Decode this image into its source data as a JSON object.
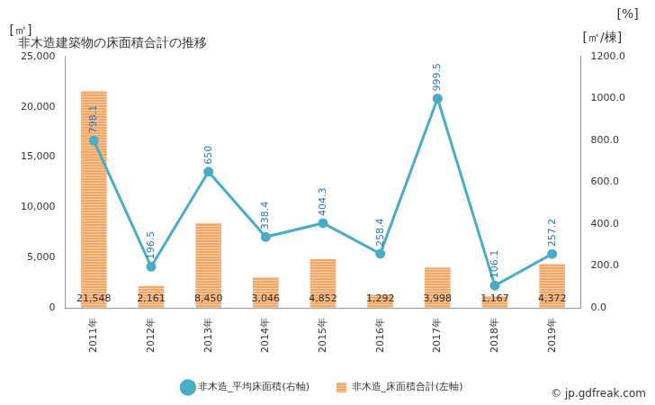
{
  "chart_data": {
    "type": "bar",
    "title": "非木造建築物の床面積合計の推移",
    "categories": [
      "2011年",
      "2012年",
      "2013年",
      "2014年",
      "2015年",
      "2016年",
      "2017年",
      "2018年",
      "2019年"
    ],
    "series": [
      {
        "name": "非木造_床面積合計(左軸)",
        "type": "bar",
        "color": "#f4a765",
        "values": [
          21548,
          2161,
          8450,
          3046,
          4852,
          1292,
          3998,
          1167,
          4372
        ],
        "value_labels": [
          "21,548",
          "2,161",
          "8,450",
          "3,046",
          "4,852",
          "1,292",
          "3,998",
          "1,167",
          "4,372"
        ]
      },
      {
        "name": "非木造_平均床面積(右軸)",
        "type": "line",
        "axis": "y2",
        "color": "#4bacc6",
        "marker": "circle",
        "values": [
          798.1,
          196.5,
          650,
          338.4,
          404.3,
          258.4,
          999.5,
          106.1,
          257.2
        ]
      }
    ],
    "y_label": "[㎡]",
    "y2_label": "[㎡/棟]",
    "ylim": [
      0,
      25000
    ],
    "yticks": [
      0,
      {
        "value": 5000,
        "label": "5,000"
      },
      {
        "value": 10000,
        "label": "10,000"
      },
      {
        "value": 15000,
        "label": "15,000"
      },
      {
        "value": 20000,
        "label": "20,000"
      },
      {
        "value": 25000,
        "label": "25,000"
      }
    ],
    "y2lim": [
      0,
      1200
    ],
    "y2ticks": [
      {
        "value": 0,
        "label": "0.0"
      },
      {
        "value": 200,
        "label": "200.0"
      },
      {
        "value": 400,
        "label": "400.0"
      },
      {
        "value": 600,
        "label": "600.0"
      },
      {
        "value": 800,
        "label": "800.0"
      },
      {
        "value": 1000,
        "label": "1000.0"
      },
      {
        "value": 1200,
        "label": "1200.0"
      }
    ],
    "grid": false,
    "legend": "bottom",
    "data_labels": true,
    "annotations": [
      "[%]",
      "© jp.gdfreak.com"
    ]
  }
}
